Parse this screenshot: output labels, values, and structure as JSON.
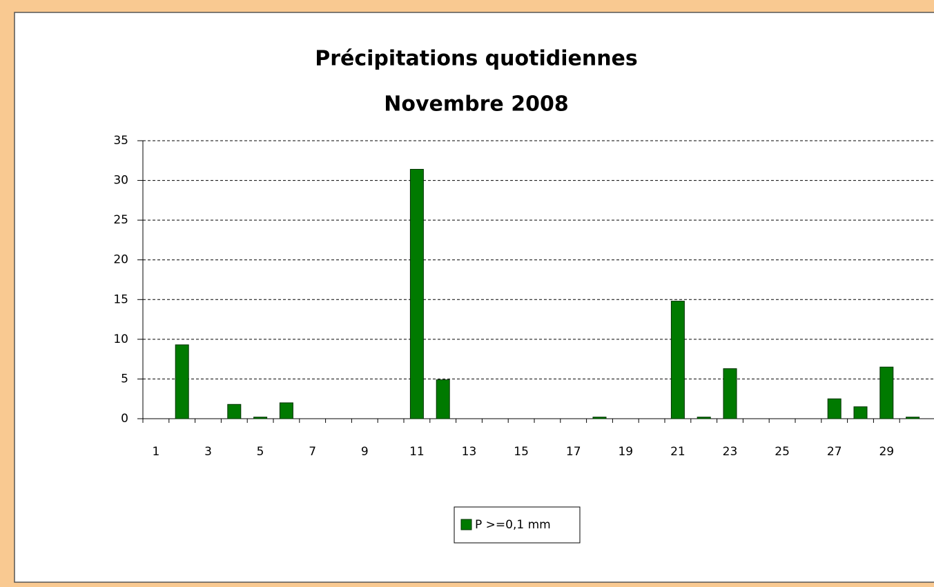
{
  "chart_data": {
    "type": "bar",
    "title": "Précipitations quotidiennes",
    "subtitle": "Novembre 2008",
    "categories": [
      "1",
      null,
      "3",
      null,
      "5",
      null,
      "7",
      null,
      "9",
      null,
      "11",
      null,
      "13",
      null,
      "15",
      null,
      "17",
      null,
      "19",
      null,
      "21",
      null,
      "23",
      null,
      "25",
      null,
      "27",
      null,
      "29",
      null
    ],
    "series": [
      {
        "name": "P >=0,1 mm",
        "color": "#007a00",
        "values": [
          0,
          9.3,
          0,
          1.8,
          0.2,
          2.0,
          0,
          0,
          0,
          0,
          31.4,
          4.9,
          0,
          0,
          0,
          0,
          0,
          0.2,
          0,
          0,
          14.8,
          0.2,
          6.3,
          0,
          0,
          0,
          2.5,
          1.5,
          6.5,
          0.2
        ]
      }
    ],
    "ylim": [
      0,
      35
    ],
    "yticks": [
      0,
      5,
      10,
      15,
      20,
      25,
      30,
      35
    ],
    "grid": true,
    "legend": "bottom"
  }
}
